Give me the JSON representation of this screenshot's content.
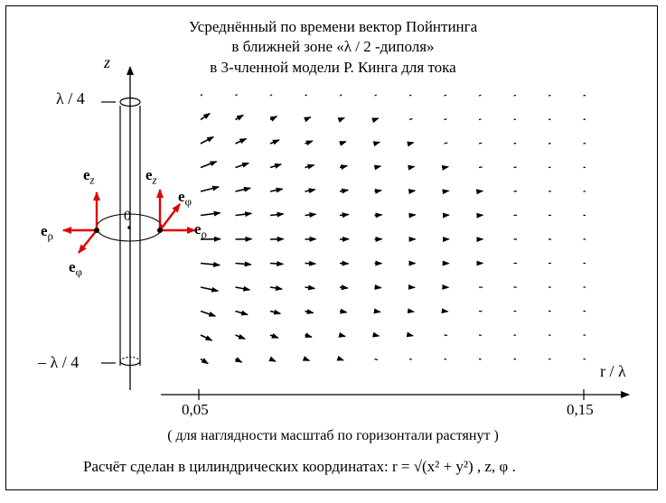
{
  "title": {
    "line1": "Усреднённый по времени вектор Пойнтинга",
    "line2": "в  ближней  зоне  «λ / 2 -диполя»",
    "line3": "в  3-членной  модели  Р. Кинга  для  тока"
  },
  "axes": {
    "z_label": "z",
    "r_label": "r / λ",
    "z_top_tick": "λ / 4",
    "z_bottom_tick": "– λ / 4",
    "r_ticks": [
      "0,05",
      "0,15"
    ],
    "origin": "0"
  },
  "unit_vectors": {
    "left": {
      "e_z": "z",
      "e_rho": "ρ",
      "e_phi": "φ"
    },
    "right": {
      "e_z": "z",
      "e_rho": "ρ",
      "e_phi": "φ"
    },
    "symbol": "e"
  },
  "note": "( для наглядности масштаб по горизонтали  растянут )",
  "calc": "Расчёт сделан в цилиндрических координатах:  r = √(x² + y²) ,  z,  φ .",
  "colors": {
    "vector": "#e00000",
    "ink": "#000000"
  }
}
